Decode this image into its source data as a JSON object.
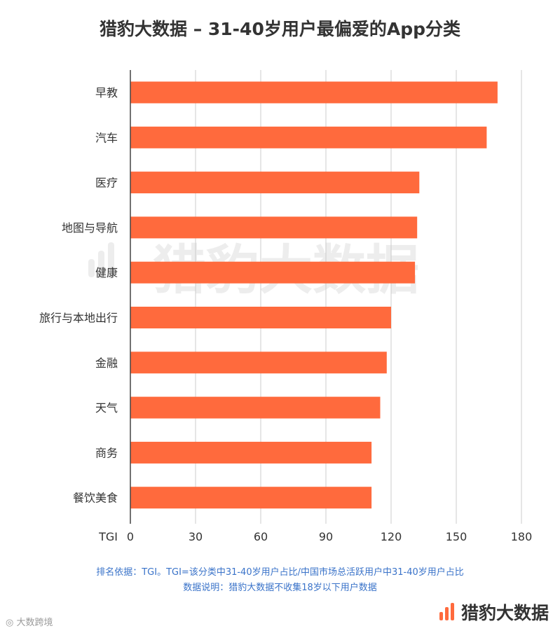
{
  "page": {
    "note_line1": "排名依据：TGI。TGI=该分类中31-40岁用户占比/中国市场总活跃用户中31-40岁用户占比",
    "note_line2": "数据说明：猎豹大数据不收集18岁以下用户数据",
    "brand_name": "猎豹大数据",
    "brand_icon": "bar-logo-icon",
    "watermark": "猎豹大数据",
    "source_mark": "◎ 大数跨境"
  },
  "colors": {
    "bar": "#ff6a3d",
    "axis": "#444444",
    "grid": "#cccccc",
    "note": "#3a73c9",
    "brand": "#ff6a3d"
  },
  "chart_data": {
    "type": "bar",
    "orientation": "horizontal",
    "title": "猎豹大数据 – 31-40岁用户最偏爱的App分类",
    "xlabel": "TGI",
    "ylabel": "",
    "xlim": [
      0,
      180
    ],
    "xticks": [
      0,
      30,
      60,
      90,
      120,
      150,
      180
    ],
    "grid": true,
    "categories": [
      "早教",
      "汽车",
      "医疗",
      "地图与导航",
      "健康",
      "旅行与本地出行",
      "金融",
      "天气",
      "商务",
      "餐饮美食"
    ],
    "values": [
      169,
      164,
      133,
      132,
      131,
      120,
      118,
      115,
      111,
      111
    ]
  }
}
